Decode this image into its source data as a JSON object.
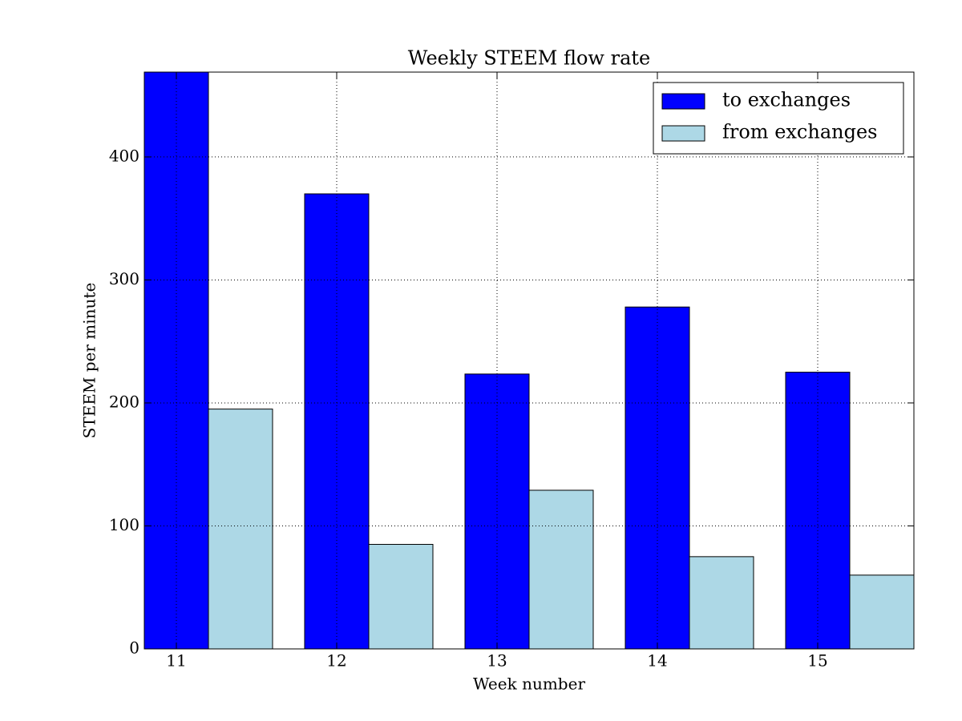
{
  "chart_data": {
    "type": "bar",
    "title": "Weekly STEEM flow rate",
    "x_label": "Week number",
    "y_label": "STEEM per minute",
    "x": [
      11,
      12,
      13,
      14,
      15
    ],
    "series": [
      {
        "name": "to exchanges",
        "color": "#0000ff",
        "values": [
          469,
          370,
          223.5,
          278,
          225
        ]
      },
      {
        "name": "from exchanges",
        "color": "#add8e6",
        "values": [
          195,
          85,
          129,
          75,
          60
        ]
      }
    ],
    "xlim": [
      10.8,
      15.6
    ],
    "xticks": [
      11,
      12,
      13,
      14,
      15
    ],
    "ylim": [
      0,
      469
    ],
    "yticks": [
      0,
      100,
      200,
      300,
      400
    ],
    "grid": true,
    "legend": "upper right"
  }
}
